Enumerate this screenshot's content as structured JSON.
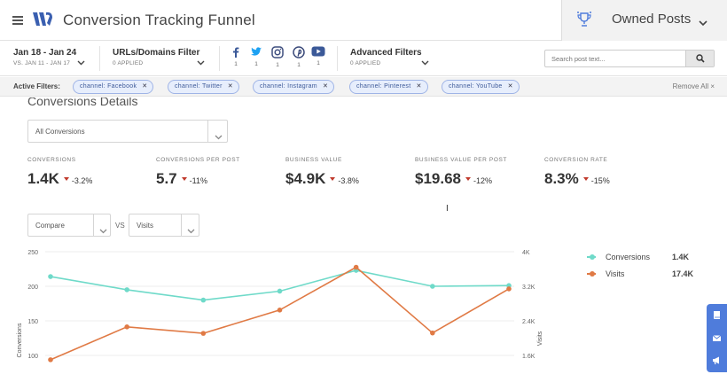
{
  "header": {
    "title": "Conversion Tracking Funnel",
    "owned_label": "Owned Posts"
  },
  "filters": {
    "date_range": "Jan 18 - Jan 24",
    "date_compare": "VS. JAN 11 - JAN 17",
    "urls_label": "URLs/Domains Filter",
    "urls_applied": "0 APPLIED",
    "advanced_label": "Advanced Filters",
    "advanced_applied": "0 APPLIED",
    "social": [
      {
        "icon": "facebook-icon",
        "count": "1",
        "color": "#3b5998"
      },
      {
        "icon": "twitter-icon",
        "count": "1",
        "color": "#1da1f2"
      },
      {
        "icon": "instagram-icon",
        "count": "1",
        "color": "#3f4f7f"
      },
      {
        "icon": "pinterest-icon",
        "count": "1",
        "color": "#3b4a7a"
      },
      {
        "icon": "youtube-icon",
        "count": "1",
        "color": "#3b5998"
      }
    ],
    "search_placeholder": "Search post text..."
  },
  "active_filters": {
    "label": "Active Filters:",
    "chips": [
      "channel: Facebook",
      "channel: Twitter",
      "channel: Instagram",
      "channel: Pinterest",
      "channel: YouTube"
    ],
    "remove_all": "Remove All ×"
  },
  "details": {
    "title": "Conversions Details",
    "select_value": "All Conversions",
    "metrics": [
      {
        "label": "CONVERSIONS",
        "value": "1.4K",
        "change": "-3.2%"
      },
      {
        "label": "CONVERSIONS PER POST",
        "value": "5.7",
        "change": "-11%"
      },
      {
        "label": "BUSINESS VALUE",
        "value": "$4.9K",
        "change": "-3.8%"
      },
      {
        "label": "BUSINESS VALUE PER POST",
        "value": "$19.68",
        "change": "-12%"
      },
      {
        "label": "CONVERSION RATE",
        "value": "8.3%",
        "change": "-15%"
      }
    ],
    "compare_select": "Compare",
    "vs_label": "VS",
    "visits_select": "Visits"
  },
  "chart_data": {
    "type": "line",
    "x": [
      1,
      2,
      3,
      4,
      5,
      6,
      7
    ],
    "ylabel": "Conversions",
    "y2label": "Visits",
    "y_ticks": [
      "250",
      "200",
      "150",
      "100"
    ],
    "y2_ticks": [
      "4K",
      "3.2K",
      "2.4K",
      "1.6K"
    ],
    "ylim": [
      100,
      250
    ],
    "y2lim": [
      1600,
      4000
    ],
    "series": [
      {
        "name": "Conversions",
        "axis": "left",
        "color": "#6fdac9",
        "values": [
          214,
          195,
          180,
          193,
          223,
          200,
          201
        ]
      },
      {
        "name": "Visits",
        "axis": "right",
        "color": "#e07a45",
        "values": [
          1500,
          2260,
          2110,
          2650,
          3640,
          2120,
          3140
        ]
      }
    ],
    "legend": [
      {
        "name": "Conversions",
        "total": "1.4K",
        "color": "#6fdac9"
      },
      {
        "name": "Visits",
        "total": "17.4K",
        "color": "#e07a45"
      }
    ],
    "legend_position": "right",
    "grid": true
  },
  "colors": {
    "accent": "#4f7cdb",
    "chip_bg": "#e7eefc",
    "decrease": "#c0392b"
  }
}
